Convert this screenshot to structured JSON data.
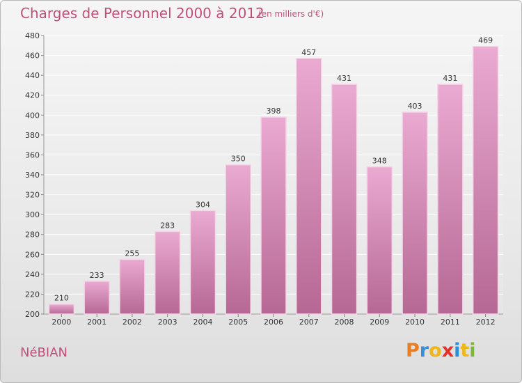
{
  "title": "Charges de Personnel 2000 à 2012",
  "unit_note": "(en milliers d'€)",
  "place_name": "NéBIAN",
  "logo": {
    "text": "Proxiti",
    "letters": [
      "P",
      "r",
      "o",
      "x",
      "i",
      "t",
      "i"
    ]
  },
  "colors": {
    "accent": "#c0507a",
    "bar_light": "#e9a8cf",
    "bar_dark": "#b76a94"
  },
  "chart_data": {
    "type": "bar",
    "categories": [
      "2000",
      "2001",
      "2002",
      "2003",
      "2004",
      "2005",
      "2006",
      "2007",
      "2008",
      "2009",
      "2010",
      "2011",
      "2012"
    ],
    "values": [
      210,
      233,
      255,
      283,
      304,
      350,
      398,
      457,
      431,
      348,
      403,
      431,
      469
    ],
    "ylim": [
      200,
      480
    ],
    "yticks": [
      200,
      220,
      240,
      260,
      280,
      300,
      320,
      340,
      360,
      380,
      400,
      420,
      440,
      460,
      480
    ],
    "grid": true,
    "data_labels": true
  }
}
